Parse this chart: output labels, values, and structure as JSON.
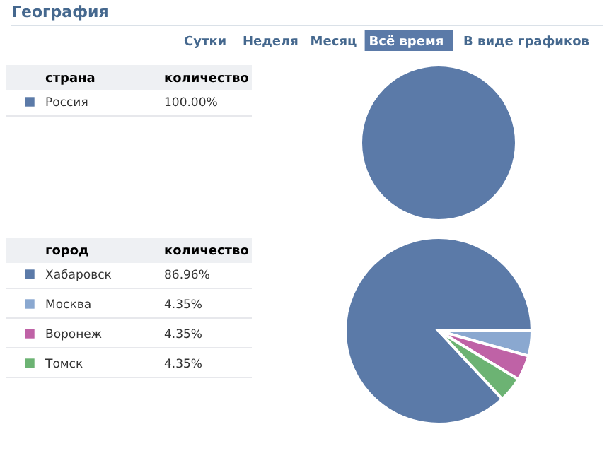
{
  "chart_data": [
    {
      "type": "pie",
      "title": "География",
      "annotations": [
        "Сутки",
        "Неделя",
        "Месяц",
        "Всё время",
        "В виде графиков",
        "количество"
      ],
      "legend_title": "страна",
      "categories": [
        "Россия"
      ],
      "values": [
        100
      ],
      "value_labels": [
        "100.00%"
      ],
      "colors": [
        "#5b7aa8"
      ],
      "legend": "left"
    },
    {
      "type": "pie",
      "annotations": [
        "количество"
      ],
      "legend_title": "город",
      "categories": [
        "Хабаровск",
        "Москва",
        "Воронеж",
        "Томск"
      ],
      "values": [
        86.96,
        4.35,
        4.35,
        4.35
      ],
      "value_labels": [
        "86.96%",
        "4.35%",
        "4.35%",
        "4.35%"
      ],
      "colors": [
        "#5b7aa8",
        "#8aa8d0",
        "#bf62a6",
        "#6cb373"
      ],
      "legend": "left"
    }
  ]
}
